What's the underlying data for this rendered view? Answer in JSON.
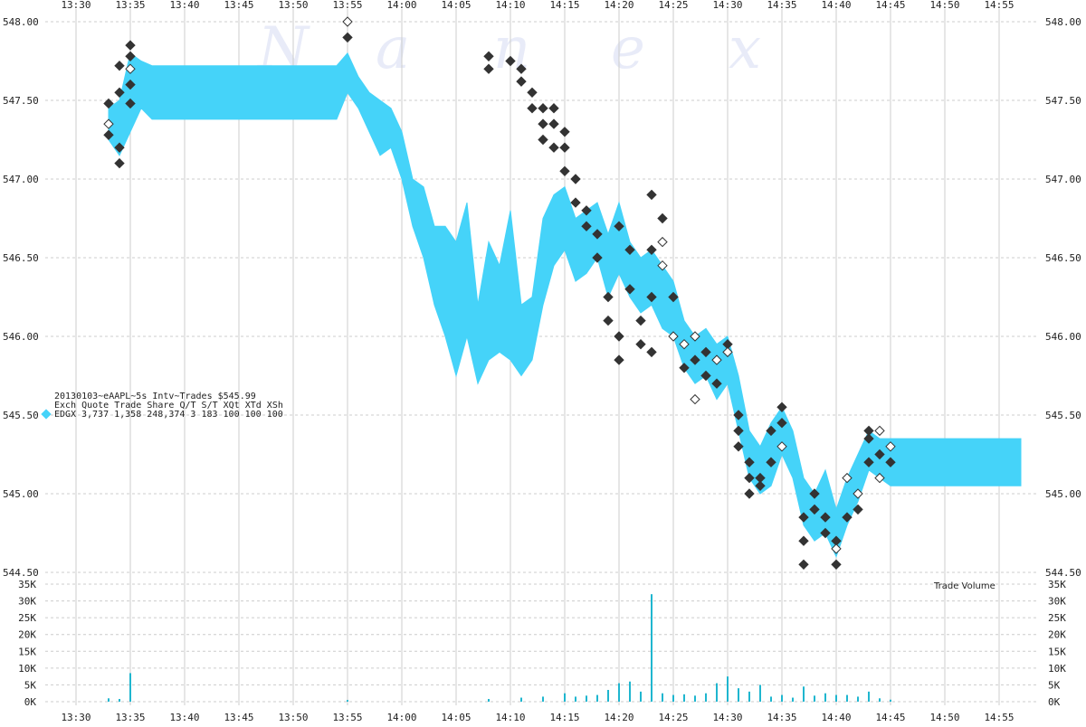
{
  "watermark": [
    "N",
    "a",
    "n",
    "e",
    "x"
  ],
  "legend": {
    "title": "20130103~eAAPL~5s Intv~Trades $545.99",
    "header": "Exch Quote Trade   Share  Q/T   S/T  XQt XTd XSh",
    "row_exch": "EDGX",
    "row": "3,737 1,358 248,374     3   183 100 100 100",
    "color": "#45d3f9"
  },
  "volume_label": "Trade Volume",
  "colors": {
    "quote": "#45d3f9",
    "trade": "#333333",
    "trade_hollow": "#ffffff",
    "volume": "#1fb6cf",
    "grid": "#cccccc"
  },
  "chart_data": [
    {
      "type": "scatter",
      "x_ticks": [
        "13:30",
        "13:35",
        "13:40",
        "13:45",
        "13:50",
        "13:55",
        "14:00",
        "14:05",
        "14:10",
        "14:15",
        "14:20",
        "14:25",
        "14:30",
        "14:35",
        "14:40",
        "14:45",
        "14:50",
        "14:55"
      ],
      "y_ticks": [
        "548.00",
        "547.50",
        "547.00",
        "546.50",
        "546.00",
        "545.50",
        "545.00",
        "544.50"
      ],
      "ylim": [
        544.5,
        548.0
      ],
      "grid": true,
      "quote_band": [
        {
          "t": "13:33",
          "low": 547.25,
          "high": 547.45
        },
        {
          "t": "13:34",
          "low": 547.15,
          "high": 547.5
        },
        {
          "t": "13:35",
          "low": 547.3,
          "high": 547.8
        },
        {
          "t": "13:36",
          "low": 547.45,
          "high": 547.75
        },
        {
          "t": "13:37",
          "low": 547.38,
          "high": 547.72
        },
        {
          "t": "13:54",
          "low": 547.38,
          "high": 547.72
        },
        {
          "t": "13:55",
          "low": 547.55,
          "high": 547.8
        },
        {
          "t": "13:56",
          "low": 547.45,
          "high": 547.65
        },
        {
          "t": "13:57",
          "low": 547.3,
          "high": 547.55
        },
        {
          "t": "13:58",
          "low": 547.15,
          "high": 547.5
        },
        {
          "t": "13:59",
          "low": 547.2,
          "high": 547.45
        },
        {
          "t": "14:00",
          "low": 547.0,
          "high": 547.3
        },
        {
          "t": "14:01",
          "low": 546.7,
          "high": 547.0
        },
        {
          "t": "14:02",
          "low": 546.5,
          "high": 546.95
        },
        {
          "t": "14:03",
          "low": 546.2,
          "high": 546.7
        },
        {
          "t": "14:04",
          "low": 546.0,
          "high": 546.7
        },
        {
          "t": "14:05",
          "low": 545.75,
          "high": 546.6
        },
        {
          "t": "14:06",
          "low": 546.0,
          "high": 546.85
        },
        {
          "t": "14:07",
          "low": 545.7,
          "high": 546.2
        },
        {
          "t": "14:08",
          "low": 545.85,
          "high": 546.6
        },
        {
          "t": "14:09",
          "low": 545.9,
          "high": 546.45
        },
        {
          "t": "14:10",
          "low": 545.85,
          "high": 546.8
        },
        {
          "t": "14:11",
          "low": 545.75,
          "high": 546.2
        },
        {
          "t": "14:12",
          "low": 545.85,
          "high": 546.25
        },
        {
          "t": "14:13",
          "low": 546.2,
          "high": 546.75
        },
        {
          "t": "14:14",
          "low": 546.45,
          "high": 546.9
        },
        {
          "t": "14:15",
          "low": 546.55,
          "high": 546.95
        },
        {
          "t": "14:16",
          "low": 546.35,
          "high": 546.75
        },
        {
          "t": "14:17",
          "low": 546.4,
          "high": 546.8
        },
        {
          "t": "14:18",
          "low": 546.5,
          "high": 546.85
        },
        {
          "t": "14:19",
          "low": 546.25,
          "high": 546.65
        },
        {
          "t": "14:20",
          "low": 546.4,
          "high": 546.85
        },
        {
          "t": "14:21",
          "low": 546.25,
          "high": 546.6
        },
        {
          "t": "14:22",
          "low": 546.15,
          "high": 546.5
        },
        {
          "t": "14:23",
          "low": 546.2,
          "high": 546.55
        },
        {
          "t": "14:24",
          "low": 546.05,
          "high": 546.45
        },
        {
          "t": "14:25",
          "low": 546.0,
          "high": 546.35
        },
        {
          "t": "14:26",
          "low": 545.8,
          "high": 546.1
        },
        {
          "t": "14:27",
          "low": 545.7,
          "high": 546.0
        },
        {
          "t": "14:28",
          "low": 545.75,
          "high": 546.05
        },
        {
          "t": "14:29",
          "low": 545.6,
          "high": 545.95
        },
        {
          "t": "14:30",
          "low": 545.7,
          "high": 546.0
        },
        {
          "t": "14:31",
          "low": 545.4,
          "high": 545.75
        },
        {
          "t": "14:32",
          "low": 545.1,
          "high": 545.4
        },
        {
          "t": "14:33",
          "low": 545.0,
          "high": 545.3
        },
        {
          "t": "14:34",
          "low": 545.05,
          "high": 545.45
        },
        {
          "t": "14:35",
          "low": 545.25,
          "high": 545.55
        },
        {
          "t": "14:36",
          "low": 545.1,
          "high": 545.4
        },
        {
          "t": "14:37",
          "low": 544.8,
          "high": 545.1
        },
        {
          "t": "14:38",
          "low": 544.7,
          "high": 545.0
        },
        {
          "t": "14:39",
          "low": 544.75,
          "high": 545.15
        },
        {
          "t": "14:40",
          "low": 544.6,
          "high": 544.9
        },
        {
          "t": "14:41",
          "low": 544.8,
          "high": 545.1
        },
        {
          "t": "14:42",
          "low": 544.95,
          "high": 545.25
        },
        {
          "t": "14:43",
          "low": 545.15,
          "high": 545.4
        },
        {
          "t": "14:44",
          "low": 545.1,
          "high": 545.35
        },
        {
          "t": "14:45",
          "low": 545.05,
          "high": 545.35
        },
        {
          "t": "14:57",
          "low": 545.05,
          "high": 545.35
        }
      ],
      "trades": [
        {
          "t": "13:33",
          "p": 547.48,
          "h": false
        },
        {
          "t": "13:33",
          "p": 547.35,
          "h": true
        },
        {
          "t": "13:33",
          "p": 547.28,
          "h": false
        },
        {
          "t": "13:34",
          "p": 547.2,
          "h": false
        },
        {
          "t": "13:34",
          "p": 547.1,
          "h": false
        },
        {
          "t": "13:34",
          "p": 547.55,
          "h": false
        },
        {
          "t": "13:34",
          "p": 547.72,
          "h": false
        },
        {
          "t": "13:35",
          "p": 547.85,
          "h": false
        },
        {
          "t": "13:35",
          "p": 547.78,
          "h": false
        },
        {
          "t": "13:35",
          "p": 547.7,
          "h": true
        },
        {
          "t": "13:35",
          "p": 547.6,
          "h": false
        },
        {
          "t": "13:35",
          "p": 547.48,
          "h": false
        },
        {
          "t": "13:55",
          "p": 548.0,
          "h": true
        },
        {
          "t": "13:55",
          "p": 547.9,
          "h": false
        },
        {
          "t": "14:08",
          "p": 547.78,
          "h": false
        },
        {
          "t": "14:08",
          "p": 547.7,
          "h": false
        },
        {
          "t": "14:10",
          "p": 547.75,
          "h": false
        },
        {
          "t": "14:11",
          "p": 547.7,
          "h": false
        },
        {
          "t": "14:11",
          "p": 547.62,
          "h": false
        },
        {
          "t": "14:12",
          "p": 547.55,
          "h": false
        },
        {
          "t": "14:12",
          "p": 547.45,
          "h": false
        },
        {
          "t": "14:13",
          "p": 547.45,
          "h": false
        },
        {
          "t": "14:13",
          "p": 547.35,
          "h": false
        },
        {
          "t": "14:13",
          "p": 547.25,
          "h": false
        },
        {
          "t": "14:14",
          "p": 547.45,
          "h": false
        },
        {
          "t": "14:14",
          "p": 547.35,
          "h": false
        },
        {
          "t": "14:14",
          "p": 547.2,
          "h": false
        },
        {
          "t": "14:15",
          "p": 547.3,
          "h": false
        },
        {
          "t": "14:15",
          "p": 547.2,
          "h": false
        },
        {
          "t": "14:15",
          "p": 547.05,
          "h": false
        },
        {
          "t": "14:16",
          "p": 547.0,
          "h": false
        },
        {
          "t": "14:16",
          "p": 546.85,
          "h": false
        },
        {
          "t": "14:17",
          "p": 546.8,
          "h": false
        },
        {
          "t": "14:17",
          "p": 546.7,
          "h": false
        },
        {
          "t": "14:18",
          "p": 546.65,
          "h": false
        },
        {
          "t": "14:18",
          "p": 546.5,
          "h": false
        },
        {
          "t": "14:19",
          "p": 546.25,
          "h": false
        },
        {
          "t": "14:19",
          "p": 546.1,
          "h": false
        },
        {
          "t": "14:20",
          "p": 546.0,
          "h": false
        },
        {
          "t": "14:20",
          "p": 545.85,
          "h": false
        },
        {
          "t": "14:20",
          "p": 546.7,
          "h": false
        },
        {
          "t": "14:21",
          "p": 546.55,
          "h": false
        },
        {
          "t": "14:21",
          "p": 546.3,
          "h": false
        },
        {
          "t": "14:22",
          "p": 546.1,
          "h": false
        },
        {
          "t": "14:22",
          "p": 545.95,
          "h": false
        },
        {
          "t": "14:23",
          "p": 546.9,
          "h": false
        },
        {
          "t": "14:23",
          "p": 546.55,
          "h": false
        },
        {
          "t": "14:23",
          "p": 546.25,
          "h": false
        },
        {
          "t": "14:23",
          "p": 545.9,
          "h": false
        },
        {
          "t": "14:24",
          "p": 546.75,
          "h": false
        },
        {
          "t": "14:24",
          "p": 546.6,
          "h": true
        },
        {
          "t": "14:24",
          "p": 546.45,
          "h": true
        },
        {
          "t": "14:25",
          "p": 546.25,
          "h": false
        },
        {
          "t": "14:25",
          "p": 546.0,
          "h": true
        },
        {
          "t": "14:26",
          "p": 545.95,
          "h": true
        },
        {
          "t": "14:26",
          "p": 545.8,
          "h": false
        },
        {
          "t": "14:27",
          "p": 546.0,
          "h": true
        },
        {
          "t": "14:27",
          "p": 545.85,
          "h": false
        },
        {
          "t": "14:27",
          "p": 545.6,
          "h": true
        },
        {
          "t": "14:28",
          "p": 545.9,
          "h": false
        },
        {
          "t": "14:28",
          "p": 545.75,
          "h": false
        },
        {
          "t": "14:29",
          "p": 545.7,
          "h": false
        },
        {
          "t": "14:29",
          "p": 545.85,
          "h": true
        },
        {
          "t": "14:30",
          "p": 545.95,
          "h": false
        },
        {
          "t": "14:30",
          "p": 545.9,
          "h": true
        },
        {
          "t": "14:31",
          "p": 545.5,
          "h": false
        },
        {
          "t": "14:31",
          "p": 545.4,
          "h": false
        },
        {
          "t": "14:31",
          "p": 545.3,
          "h": false
        },
        {
          "t": "14:32",
          "p": 545.2,
          "h": false
        },
        {
          "t": "14:32",
          "p": 545.1,
          "h": false
        },
        {
          "t": "14:32",
          "p": 545.0,
          "h": false
        },
        {
          "t": "14:33",
          "p": 545.05,
          "h": false
        },
        {
          "t": "14:33",
          "p": 545.1,
          "h": false
        },
        {
          "t": "14:34",
          "p": 545.2,
          "h": false
        },
        {
          "t": "14:34",
          "p": 545.4,
          "h": false
        },
        {
          "t": "14:35",
          "p": 545.55,
          "h": false
        },
        {
          "t": "14:35",
          "p": 545.45,
          "h": false
        },
        {
          "t": "14:35",
          "p": 545.3,
          "h": true
        },
        {
          "t": "14:37",
          "p": 544.85,
          "h": false
        },
        {
          "t": "14:37",
          "p": 544.7,
          "h": false
        },
        {
          "t": "14:37",
          "p": 544.55,
          "h": false
        },
        {
          "t": "14:38",
          "p": 545.0,
          "h": false
        },
        {
          "t": "14:38",
          "p": 544.9,
          "h": false
        },
        {
          "t": "14:39",
          "p": 544.85,
          "h": false
        },
        {
          "t": "14:39",
          "p": 544.75,
          "h": false
        },
        {
          "t": "14:40",
          "p": 544.7,
          "h": false
        },
        {
          "t": "14:40",
          "p": 544.55,
          "h": false
        },
        {
          "t": "14:40",
          "p": 544.65,
          "h": true
        },
        {
          "t": "14:41",
          "p": 544.85,
          "h": false
        },
        {
          "t": "14:41",
          "p": 545.1,
          "h": true
        },
        {
          "t": "14:42",
          "p": 544.9,
          "h": false
        },
        {
          "t": "14:42",
          "p": 545.0,
          "h": true
        },
        {
          "t": "14:43",
          "p": 545.2,
          "h": false
        },
        {
          "t": "14:43",
          "p": 545.35,
          "h": false
        },
        {
          "t": "14:43",
          "p": 545.4,
          "h": false
        },
        {
          "t": "14:44",
          "p": 545.4,
          "h": true
        },
        {
          "t": "14:44",
          "p": 545.25,
          "h": false
        },
        {
          "t": "14:44",
          "p": 545.1,
          "h": true
        },
        {
          "t": "14:45",
          "p": 545.3,
          "h": true
        },
        {
          "t": "14:45",
          "p": 545.2,
          "h": false
        }
      ]
    },
    {
      "type": "bar",
      "title": "Trade Volume",
      "y_ticks": [
        "35K",
        "30K",
        "25K",
        "20K",
        "15K",
        "10K",
        "5K",
        "0K"
      ],
      "ylim": [
        0,
        35000
      ],
      "bars": [
        {
          "t": "13:33",
          "v": 1000
        },
        {
          "t": "13:34",
          "v": 800
        },
        {
          "t": "13:35",
          "v": 8500
        },
        {
          "t": "13:55",
          "v": 500
        },
        {
          "t": "14:08",
          "v": 800
        },
        {
          "t": "14:11",
          "v": 1200
        },
        {
          "t": "14:13",
          "v": 1500
        },
        {
          "t": "14:15",
          "v": 2500
        },
        {
          "t": "14:16",
          "v": 1500
        },
        {
          "t": "14:17",
          "v": 1800
        },
        {
          "t": "14:18",
          "v": 2000
        },
        {
          "t": "14:19",
          "v": 3500
        },
        {
          "t": "14:20",
          "v": 5500
        },
        {
          "t": "14:21",
          "v": 6000
        },
        {
          "t": "14:22",
          "v": 3000
        },
        {
          "t": "14:23",
          "v": 32000
        },
        {
          "t": "14:24",
          "v": 2500
        },
        {
          "t": "14:25",
          "v": 2000
        },
        {
          "t": "14:26",
          "v": 2200
        },
        {
          "t": "14:27",
          "v": 1800
        },
        {
          "t": "14:28",
          "v": 2500
        },
        {
          "t": "14:29",
          "v": 5500
        },
        {
          "t": "14:30",
          "v": 7500
        },
        {
          "t": "14:31",
          "v": 4000
        },
        {
          "t": "14:32",
          "v": 3000
        },
        {
          "t": "14:33",
          "v": 5000
        },
        {
          "t": "14:34",
          "v": 1500
        },
        {
          "t": "14:35",
          "v": 2000
        },
        {
          "t": "14:36",
          "v": 1200
        },
        {
          "t": "14:37",
          "v": 4500
        },
        {
          "t": "14:38",
          "v": 1800
        },
        {
          "t": "14:39",
          "v": 2500
        },
        {
          "t": "14:40",
          "v": 2000
        },
        {
          "t": "14:41",
          "v": 2000
        },
        {
          "t": "14:42",
          "v": 1500
        },
        {
          "t": "14:43",
          "v": 3000
        },
        {
          "t": "14:44",
          "v": 1000
        },
        {
          "t": "14:45",
          "v": 600
        }
      ]
    }
  ]
}
